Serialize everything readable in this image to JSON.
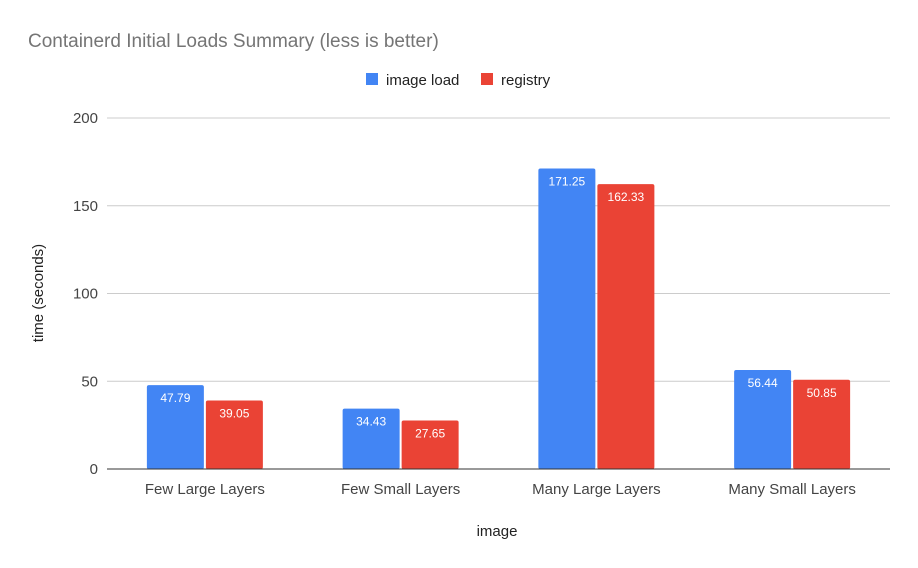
{
  "chart_data": {
    "type": "bar",
    "title": "Containerd Initial Loads Summary (less is better)",
    "xlabel": "image",
    "ylabel": "time (seconds)",
    "categories": [
      "Few Large Layers",
      "Few Small Layers",
      "Many Large Layers",
      "Many Small Layers"
    ],
    "series": [
      {
        "name": "image load",
        "color": "#4285f4",
        "values": [
          47.79,
          34.43,
          171.25,
          56.44
        ],
        "labels": [
          "47.79",
          "34.43",
          "171.25",
          "56.44"
        ]
      },
      {
        "name": "registry",
        "color": "#ea4335",
        "values": [
          39.05,
          27.65,
          162.33,
          50.85
        ],
        "labels": [
          "39.05",
          "27.65",
          "162.33",
          "50.85"
        ]
      }
    ],
    "ylim": [
      0,
      200
    ],
    "yticks": [
      0,
      50,
      100,
      150,
      200
    ],
    "ytick_labels": [
      "0",
      "50",
      "100",
      "150",
      "200"
    ],
    "grid": true,
    "legend_position": "top-center"
  }
}
